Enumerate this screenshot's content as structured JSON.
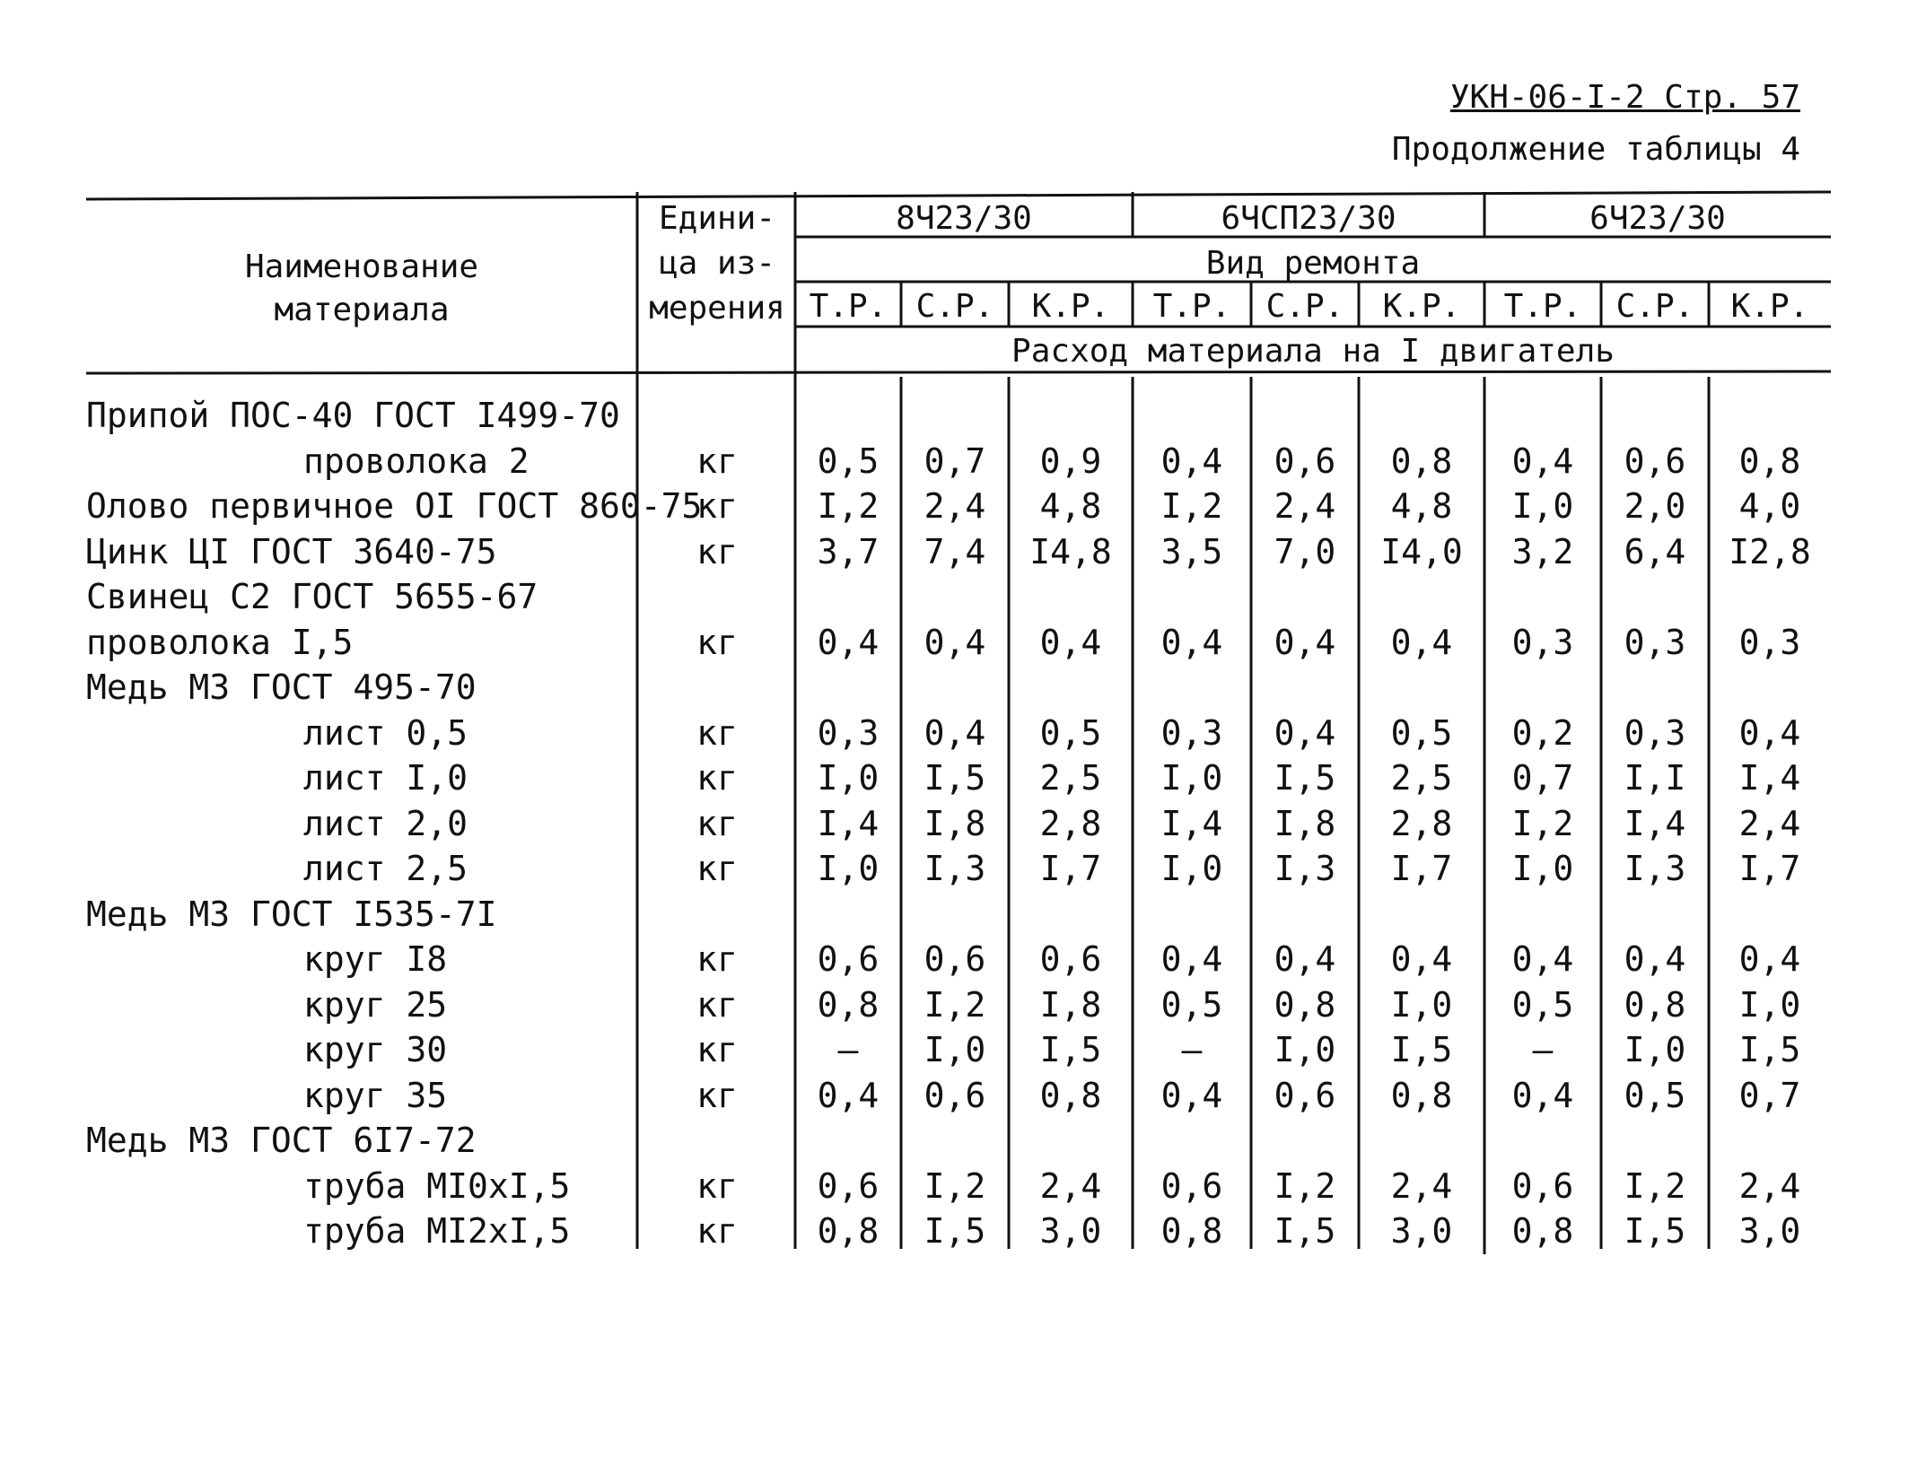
{
  "doc_code": "УКН-06-I-2 Стр. 57",
  "subtitle": "Продолжение таблицы 4",
  "header": {
    "col_name": [
      "Наименование",
      "материала"
    ],
    "col_unit": [
      "Едини-",
      "ца из-",
      "мерения"
    ],
    "engines": [
      "8Ч23/30",
      "6ЧСП23/30",
      "6Ч23/30"
    ],
    "repair_type": "Вид ремонта",
    "repair_cols": [
      "Т.Р.",
      "С.Р.",
      "К.Р."
    ],
    "consumption": "Расход материала на I двигатель"
  },
  "rows": [
    {
      "name": "Припой ПОС-40 ГОСТ I499-70",
      "indent": false,
      "unit": "",
      "values": []
    },
    {
      "name": "проволока 2",
      "indent": true,
      "unit": "кг",
      "values": [
        "0,5",
        "0,7",
        "0,9",
        "0,4",
        "0,6",
        "0,8",
        "0,4",
        "0,6",
        "0,8"
      ]
    },
    {
      "name": "Олово первичное OI ГОСТ 860-75",
      "indent": false,
      "unit": "кг",
      "values": [
        "I,2",
        "2,4",
        "4,8",
        "I,2",
        "2,4",
        "4,8",
        "I,0",
        "2,0",
        "4,0"
      ]
    },
    {
      "name": "Цинк ЦI ГОСТ 3640-75",
      "indent": false,
      "unit": "кг",
      "values": [
        "3,7",
        "7,4",
        "I4,8",
        "3,5",
        "7,0",
        "I4,0",
        "3,2",
        "6,4",
        "I2,8"
      ]
    },
    {
      "name": "Свинец С2 ГОСТ 5655-67",
      "indent": false,
      "unit": "",
      "values": []
    },
    {
      "name": "проволока I,5",
      "indent": false,
      "unit": "кг",
      "values": [
        "0,4",
        "0,4",
        "0,4",
        "0,4",
        "0,4",
        "0,4",
        "0,3",
        "0,3",
        "0,3"
      ]
    },
    {
      "name": "Медь М3 ГОСТ 495-70",
      "indent": false,
      "unit": "",
      "values": []
    },
    {
      "name": "лист 0,5",
      "indent": true,
      "unit": "кг",
      "values": [
        "0,3",
        "0,4",
        "0,5",
        "0,3",
        "0,4",
        "0,5",
        "0,2",
        "0,3",
        "0,4"
      ]
    },
    {
      "name": "лист I,0",
      "indent": true,
      "unit": "кг",
      "values": [
        "I,0",
        "I,5",
        "2,5",
        "I,0",
        "I,5",
        "2,5",
        "0,7",
        "I,I",
        "I,4"
      ]
    },
    {
      "name": "лист 2,0",
      "indent": true,
      "unit": "кг",
      "values": [
        "I,4",
        "I,8",
        "2,8",
        "I,4",
        "I,8",
        "2,8",
        "I,2",
        "I,4",
        "2,4"
      ]
    },
    {
      "name": "лист 2,5",
      "indent": true,
      "unit": "кг",
      "values": [
        "I,0",
        "I,3",
        "I,7",
        "I,0",
        "I,3",
        "I,7",
        "I,0",
        "I,3",
        "I,7"
      ]
    },
    {
      "name": "Медь М3 ГОСТ I535-7I",
      "indent": false,
      "unit": "",
      "values": []
    },
    {
      "name": "круг I8",
      "indent": true,
      "unit": "кг",
      "values": [
        "0,6",
        "0,6",
        "0,6",
        "0,4",
        "0,4",
        "0,4",
        "0,4",
        "0,4",
        "0,4"
      ]
    },
    {
      "name": "круг 25",
      "indent": true,
      "unit": "кг",
      "values": [
        "0,8",
        "I,2",
        "I,8",
        "0,5",
        "0,8",
        "I,0",
        "0,5",
        "0,8",
        "I,0"
      ]
    },
    {
      "name": "круг 30",
      "indent": true,
      "unit": "кг",
      "values": [
        "–",
        "I,0",
        "I,5",
        "–",
        "I,0",
        "I,5",
        "–",
        "I,0",
        "I,5"
      ]
    },
    {
      "name": "круг 35",
      "indent": true,
      "unit": "кг",
      "values": [
        "0,4",
        "0,6",
        "0,8",
        "0,4",
        "0,6",
        "0,8",
        "0,4",
        "0,5",
        "0,7"
      ]
    },
    {
      "name": "Медь М3 ГОСТ 6I7-72",
      "indent": false,
      "unit": "",
      "values": []
    },
    {
      "name": "труба МI0хI,5",
      "indent": true,
      "unit": "кг",
      "values": [
        "0,6",
        "I,2",
        "2,4",
        "0,6",
        "I,2",
        "2,4",
        "0,6",
        "I,2",
        "2,4"
      ]
    },
    {
      "name": "труба МI2хI,5",
      "indent": true,
      "unit": "кг",
      "values": [
        "0,8",
        "I,5",
        "3,0",
        "0,8",
        "I,5",
        "3,0",
        "0,8",
        "I,5",
        "3,0"
      ]
    }
  ]
}
